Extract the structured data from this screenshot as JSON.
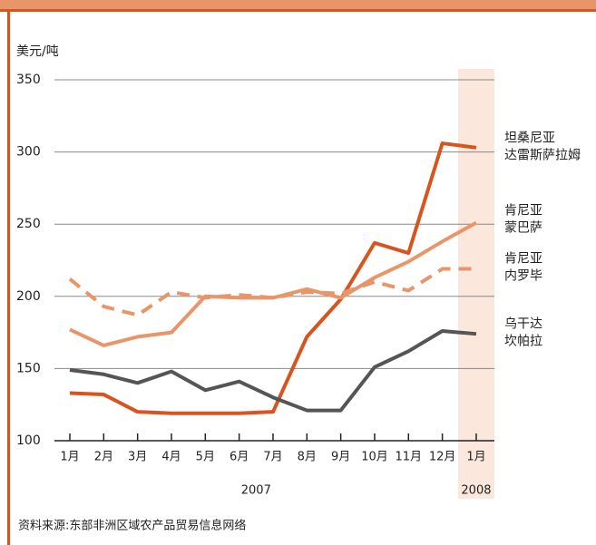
{
  "chart_data": {
    "type": "line",
    "y_label": "美元/吨",
    "categories": [
      "1月",
      "2月",
      "3月",
      "4月",
      "5月",
      "6月",
      "7月",
      "8月",
      "9月",
      "10月",
      "11月",
      "12月",
      "1月"
    ],
    "x_groups": [
      {
        "label": "2007",
        "start": 0,
        "end": 11
      },
      {
        "label": "2008",
        "start": 12,
        "end": 12
      }
    ],
    "highlight_group": 1,
    "highlight_color": "#fbe7dc",
    "ylim": [
      100,
      350
    ],
    "yticks": [
      100,
      150,
      200,
      250,
      300,
      350
    ],
    "grid": true,
    "series": [
      {
        "name": "坦桑尼亚\n达雷斯萨拉姆",
        "color": "#d9531e",
        "dash": false,
        "values": [
          133,
          132,
          120,
          119,
          119,
          119,
          120,
          172,
          198,
          237,
          230,
          306,
          303
        ]
      },
      {
        "name": "肯尼亚\n蒙巴萨",
        "color": "#e8956a",
        "dash": false,
        "values": [
          177,
          166,
          172,
          175,
          200,
          199,
          199,
          205,
          199,
          213,
          224,
          238,
          251
        ]
      },
      {
        "name": "肯尼亚\n内罗毕",
        "color": "#e8956a",
        "dash": true,
        "values": [
          212,
          193,
          187,
          203,
          199,
          201,
          199,
          203,
          202,
          210,
          204,
          219,
          219
        ]
      },
      {
        "name": "乌干达\n坎帕拉",
        "color": "#555555",
        "dash": false,
        "values": [
          149,
          146,
          140,
          148,
          135,
          141,
          130,
          121,
          121,
          151,
          162,
          176,
          174
        ]
      }
    ],
    "source": "资料来源:东部非洲区域农产品贸易信息网络"
  }
}
